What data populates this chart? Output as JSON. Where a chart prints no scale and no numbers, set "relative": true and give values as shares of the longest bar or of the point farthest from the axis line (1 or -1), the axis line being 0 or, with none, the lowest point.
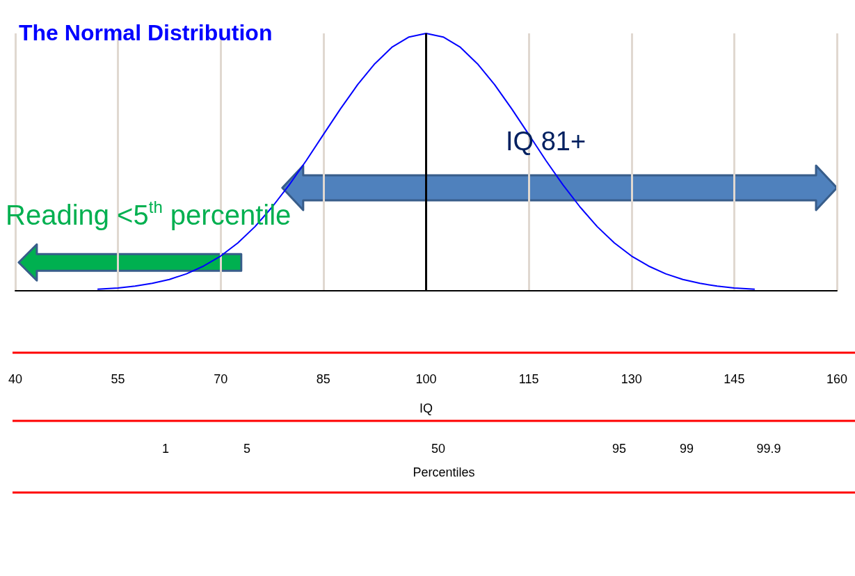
{
  "chart_data": {
    "type": "line",
    "title": "The Normal Distribution",
    "xlabel": "IQ",
    "relative": true,
    "x": [
      52,
      55,
      57.5,
      60,
      62.5,
      65,
      67.5,
      70,
      72.5,
      75,
      77.5,
      80,
      82.5,
      85,
      87.5,
      90,
      92.5,
      95,
      97.5,
      100,
      102.5,
      105,
      107.5,
      110,
      112.5,
      115,
      117.5,
      120,
      122.5,
      125,
      127.5,
      130,
      132.5,
      135,
      137.5,
      140,
      142.5,
      145,
      148
    ],
    "series": [
      {
        "color": "#0000ff",
        "values": [
          0.006,
          0.011,
          0.018,
          0.029,
          0.044,
          0.066,
          0.096,
          0.135,
          0.186,
          0.249,
          0.325,
          0.411,
          0.506,
          0.607,
          0.707,
          0.801,
          0.882,
          0.946,
          0.986,
          1,
          0.986,
          0.946,
          0.882,
          0.801,
          0.707,
          0.607,
          0.506,
          0.411,
          0.325,
          0.249,
          0.186,
          0.135,
          0.096,
          0.066,
          0.044,
          0.029,
          0.018,
          0.011,
          0.006
        ]
      }
    ],
    "xlim": [
      40,
      160
    ],
    "xticks": [
      40,
      55,
      70,
      85,
      100,
      115,
      130,
      145,
      160
    ],
    "ref_lines": [
      {
        "axis": "x",
        "value": 100,
        "color": "#000000"
      }
    ],
    "annotations": [
      "IQ 81+",
      "Reading <5$^{th}$ percentile",
      "Percentiles",
      "1",
      "5",
      "50",
      "95",
      "99",
      "99.9"
    ],
    "grid": "x",
    "marker": "none"
  }
}
